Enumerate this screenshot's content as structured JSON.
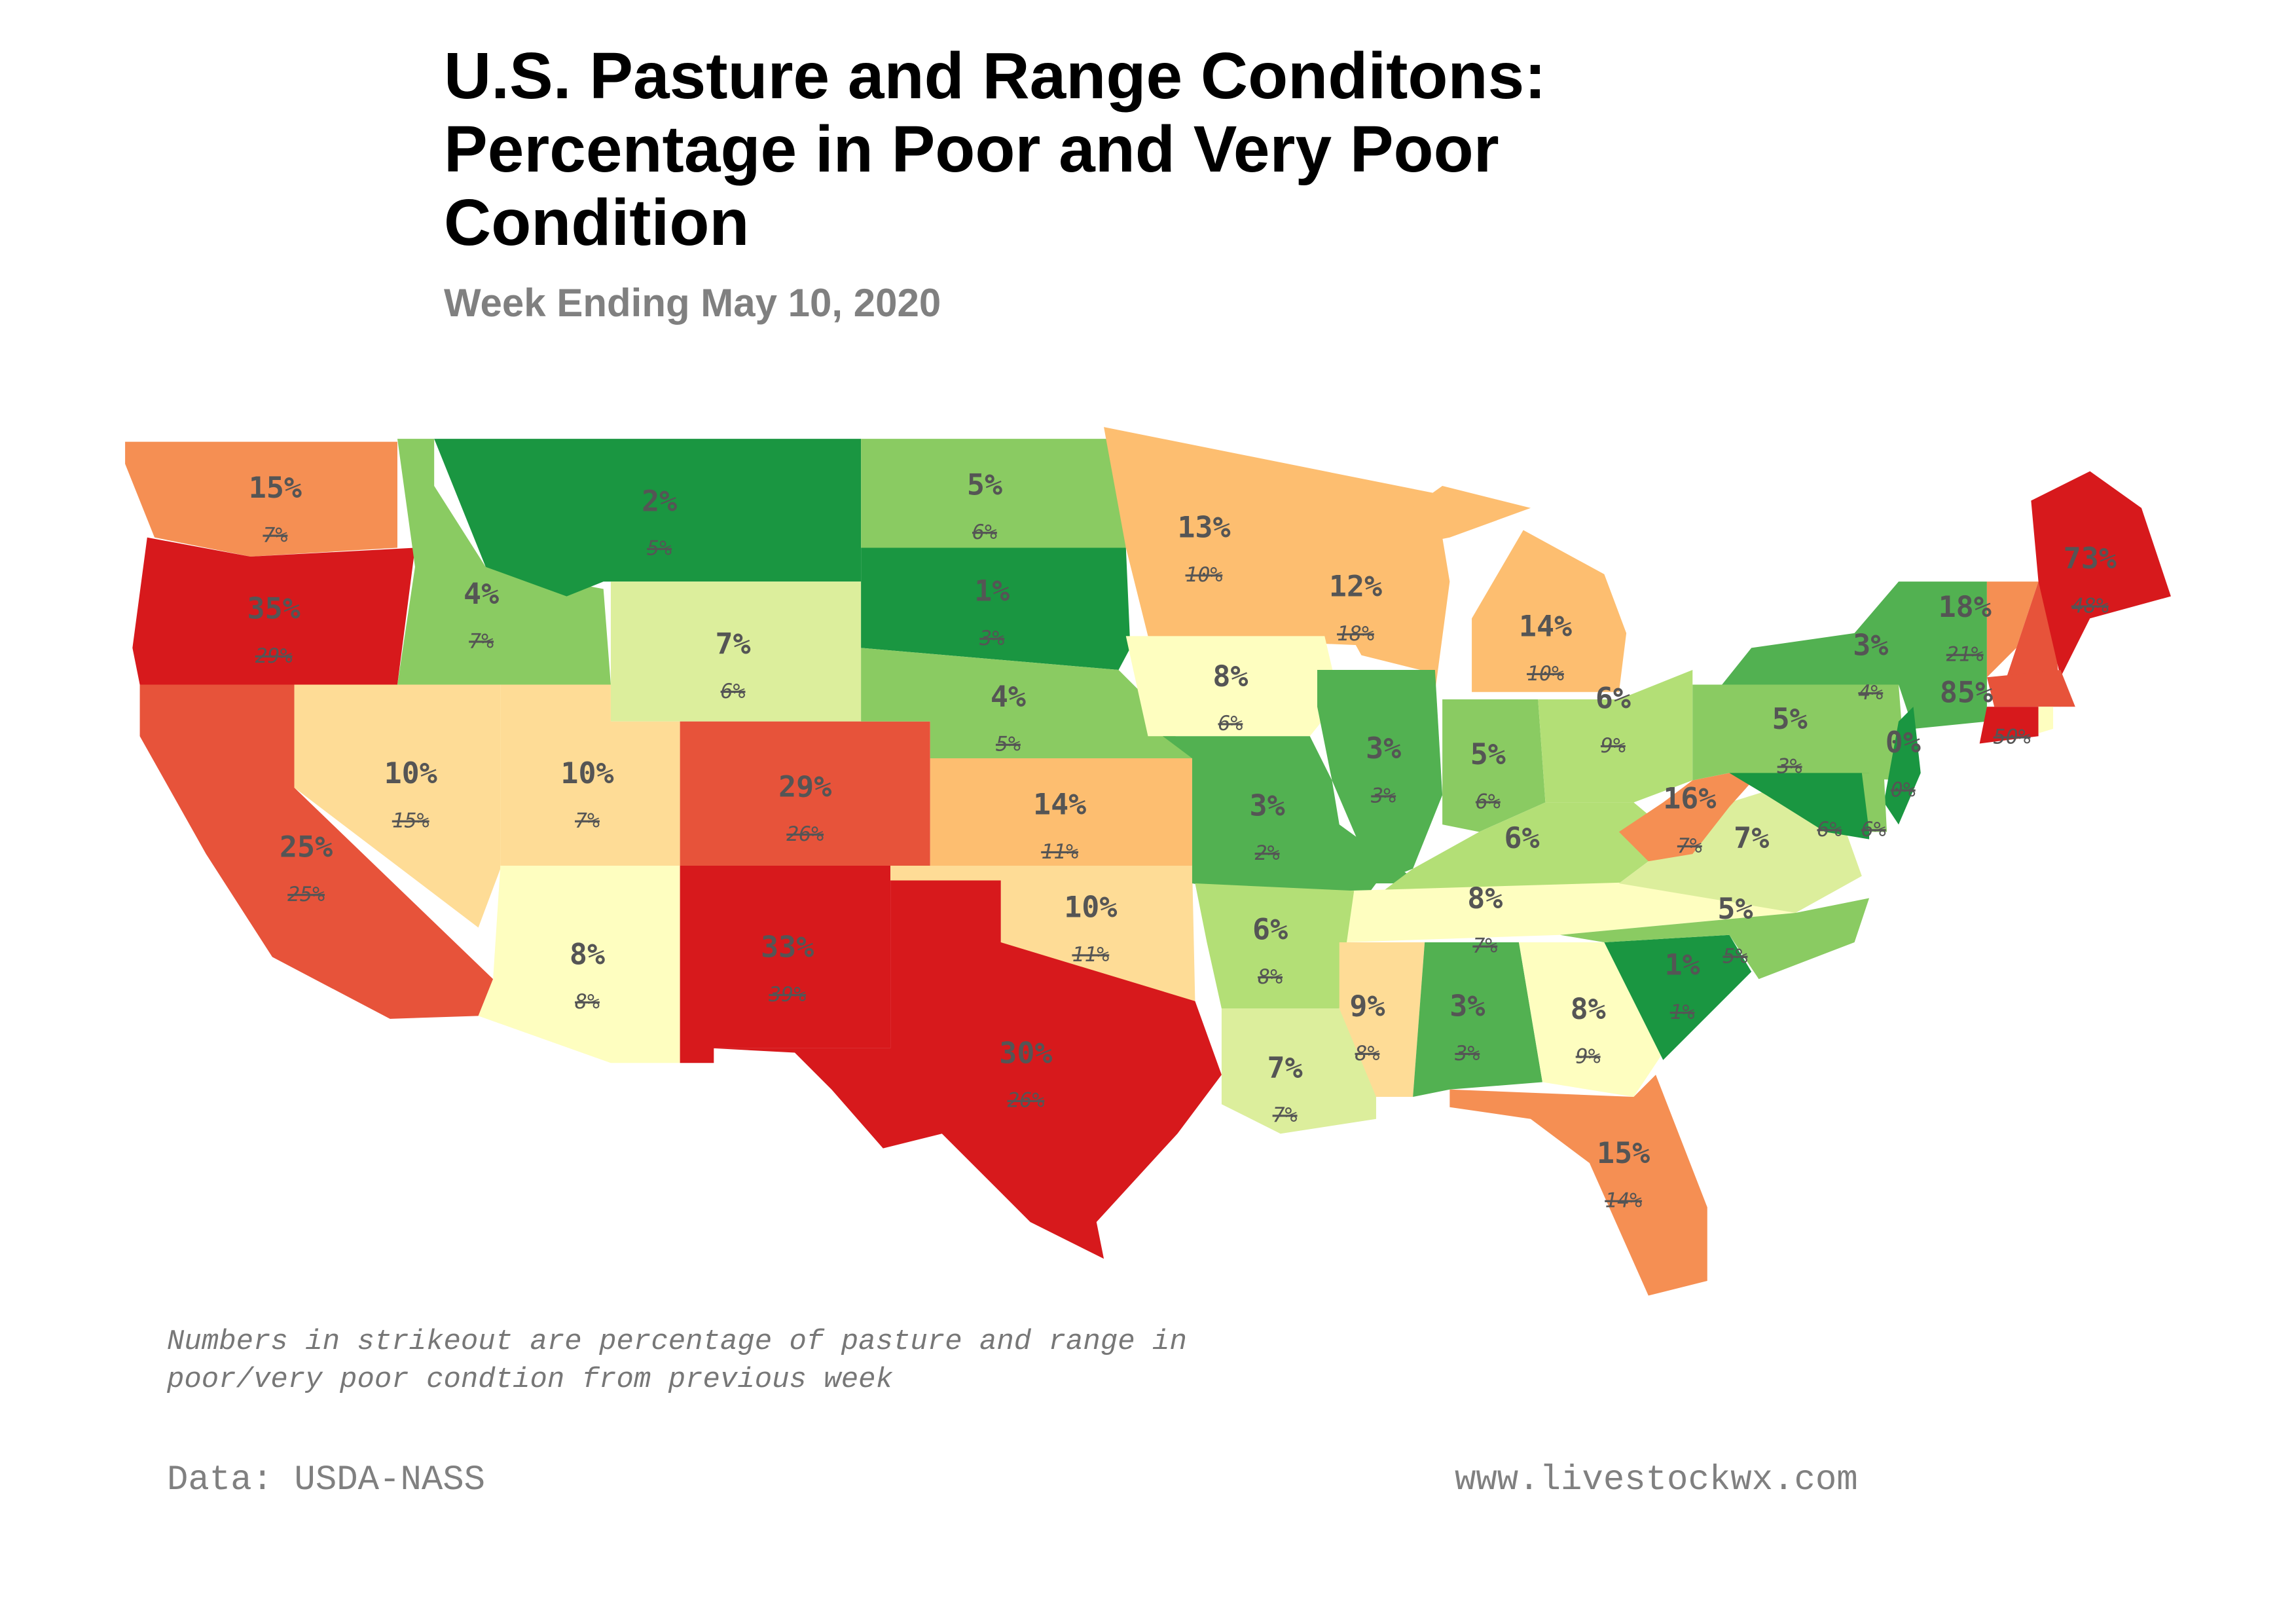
{
  "title": "U.S. Pasture and Range Conditons: Percentage in Poor and Very Poor Condition",
  "subtitle": "Week Ending May 10, 2020",
  "note": "Numbers in strikeout are percentage of pasture and range in\npoor/very poor condtion from previous week",
  "source": "Data: USDA-NASS",
  "website": "www.livestockwx.com",
  "map": {
    "type": "choropleth",
    "region": "Contiguous United States",
    "color_scale": "red-yellow-green (red = higher percentage poor/very poor)",
    "states": [
      {
        "state": "WA",
        "current": "15%",
        "previous": "7%",
        "color": "#f58f53"
      },
      {
        "state": "OR",
        "current": "35%",
        "previous": "29%",
        "color": "#d7191c"
      },
      {
        "state": "CA",
        "current": "25%",
        "previous": "25%",
        "color": "#e7533a"
      },
      {
        "state": "NV",
        "current": "10%",
        "previous": "15%",
        "color": "#fedc96"
      },
      {
        "state": "ID",
        "current": "4%",
        "previous": "7%",
        "color": "#8acb62"
      },
      {
        "state": "MT",
        "current": "2%",
        "previous": "5%",
        "color": "#1a9641"
      },
      {
        "state": "WY",
        "current": "7%",
        "previous": "6%",
        "color": "#dcee9c"
      },
      {
        "state": "UT",
        "current": "10%",
        "previous": "7%",
        "color": "#fedc96"
      },
      {
        "state": "AZ",
        "current": "8%",
        "previous": "8%",
        "color": "#fefec0"
      },
      {
        "state": "CO",
        "current": "29%",
        "previous": "26%",
        "color": "#e7533a"
      },
      {
        "state": "NM",
        "current": "33%",
        "previous": "39%",
        "color": "#d7191c"
      },
      {
        "state": "ND",
        "current": "5%",
        "previous": "6%",
        "color": "#8acb62"
      },
      {
        "state": "SD",
        "current": "1%",
        "previous": "3%",
        "color": "#1a9641"
      },
      {
        "state": "NE",
        "current": "4%",
        "previous": "5%",
        "color": "#8acb62"
      },
      {
        "state": "KS",
        "current": "14%",
        "previous": "11%",
        "color": "#fdbe70"
      },
      {
        "state": "OK",
        "current": "10%",
        "previous": "11%",
        "color": "#fedc96"
      },
      {
        "state": "TX",
        "current": "30%",
        "previous": "26%",
        "color": "#d7191c"
      },
      {
        "state": "MN",
        "current": "13%",
        "previous": "10%",
        "color": "#fdbe70"
      },
      {
        "state": "WI",
        "current": "12%",
        "previous": "18%",
        "color": "#fdbe70"
      },
      {
        "state": "IA",
        "current": "8%",
        "previous": "6%",
        "color": "#fefec0"
      },
      {
        "state": "MO",
        "current": "3%",
        "previous": "2%",
        "color": "#52b151"
      },
      {
        "state": "IL",
        "current": "3%",
        "previous": "3%",
        "color": "#52b151"
      },
      {
        "state": "MI",
        "current": "14%",
        "previous": "10%",
        "color": "#fdbe70"
      },
      {
        "state": "IN",
        "current": "5%",
        "previous": "6%",
        "color": "#8acb62"
      },
      {
        "state": "OH",
        "current": "6%",
        "previous": "9%",
        "color": "#b3df76"
      },
      {
        "state": "KY",
        "current": "6%",
        "previous": "",
        "color": "#b3df76"
      },
      {
        "state": "TN",
        "current": "8%",
        "previous": "7%",
        "color": "#fefec0"
      },
      {
        "state": "AR",
        "current": "6%",
        "previous": "8%",
        "color": "#b3df76"
      },
      {
        "state": "LA",
        "current": "7%",
        "previous": "7%",
        "color": "#dcee9c"
      },
      {
        "state": "MS",
        "current": "9%",
        "previous": "8%",
        "color": "#fedc96"
      },
      {
        "state": "AL",
        "current": "3%",
        "previous": "3%",
        "color": "#52b151"
      },
      {
        "state": "GA",
        "current": "8%",
        "previous": "9%",
        "color": "#fefec0"
      },
      {
        "state": "FL",
        "current": "15%",
        "previous": "14%",
        "color": "#f58f53"
      },
      {
        "state": "SC",
        "current": "1%",
        "previous": "1%",
        "color": "#1a9641"
      },
      {
        "state": "NC",
        "current": "5%",
        "previous": "5%",
        "color": "#8acb62"
      },
      {
        "state": "VA",
        "current": "7%",
        "previous": "",
        "color": "#dcee9c"
      },
      {
        "state": "WV",
        "current": "16%",
        "previous": "7%",
        "color": "#f58f53"
      },
      {
        "state": "PA",
        "current": "5%",
        "previous": "3%",
        "color": "#8acb62"
      },
      {
        "state": "NY",
        "current": "3%",
        "previous": "4%",
        "color": "#52b151"
      },
      {
        "state": "NJ",
        "current": "0%",
        "previous": "0%",
        "color": "#1a9641"
      },
      {
        "state": "MD",
        "current": "",
        "previous": "6%",
        "color": "#1a9641"
      },
      {
        "state": "DE",
        "current": "",
        "previous": "6%",
        "color": "#8acb62"
      },
      {
        "state": "VT",
        "current": "18%",
        "previous": "21%",
        "color": "#f58f53"
      },
      {
        "state": "NH",
        "current": "",
        "previous": "",
        "color": "#e7533a"
      },
      {
        "state": "ME",
        "current": "73%",
        "previous": "48%",
        "color": "#d7191c"
      },
      {
        "state": "MA",
        "current": "",
        "previous": "",
        "color": "#e7533a"
      },
      {
        "state": "CT",
        "current": "85%",
        "previous": "",
        "color": "#d7191c"
      },
      {
        "state": "RI",
        "current": "",
        "previous": "50%",
        "color": "#fefec0"
      }
    ]
  }
}
